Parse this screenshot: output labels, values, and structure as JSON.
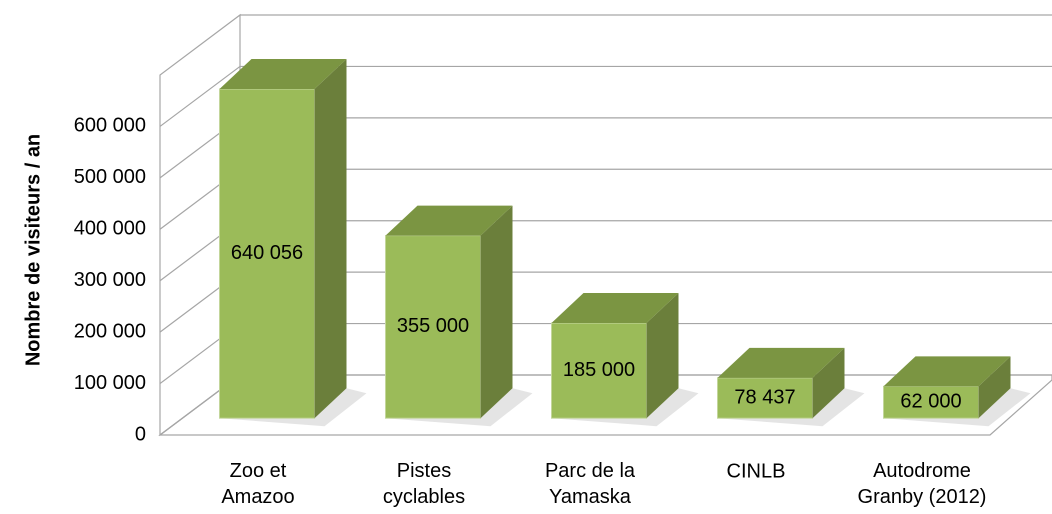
{
  "chart_data": {
    "type": "bar3d",
    "y_label": "Nombre de visiteurs / an",
    "categories": [
      "Zoo et\nAmazoo",
      "Pistes\ncyclables",
      "Parc de la\nYamaska",
      "CINLB",
      "Autodrome\nGranby (2012)"
    ],
    "values": [
      640056,
      355000,
      185000,
      78437,
      62000
    ],
    "value_labels": [
      "640 056",
      "355 000",
      "185 000",
      "78 437",
      "62 000"
    ],
    "color": "#9bbb59",
    "ylim": [
      0,
      700000
    ],
    "yticks": [
      0,
      {
        "value": 100000,
        "label": "100 000"
      },
      {
        "value": 200000,
        "label": "200 000"
      },
      {
        "value": 300000,
        "label": "300 000"
      },
      {
        "value": 400000,
        "label": "400 000"
      },
      {
        "value": 500000,
        "label": "500 000"
      },
      {
        "value": 600000,
        "label": "600 000"
      }
    ],
    "grid": true
  }
}
